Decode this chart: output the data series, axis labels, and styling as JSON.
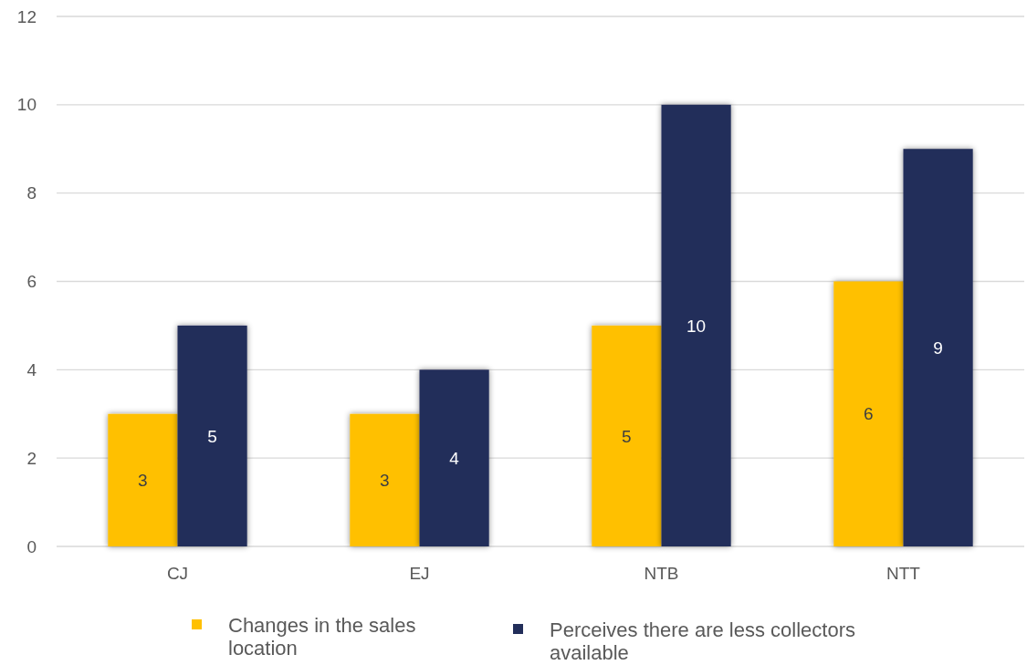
{
  "chart_data": {
    "type": "bar",
    "categories": [
      "CJ",
      "EJ",
      "NTB",
      "NTT"
    ],
    "series": [
      {
        "name": "Changes in the sales location",
        "color": "#ffc000",
        "values": [
          3,
          3,
          5,
          6
        ]
      },
      {
        "name": "Perceives there are less collectors available",
        "color": "#222e5a",
        "values": [
          5,
          4,
          10,
          9
        ]
      }
    ],
    "ylim": [
      0,
      12
    ],
    "yticks": [
      0,
      2,
      4,
      6,
      8,
      10,
      12
    ],
    "grid": "y",
    "legend": "bottom",
    "data_labels": true
  }
}
